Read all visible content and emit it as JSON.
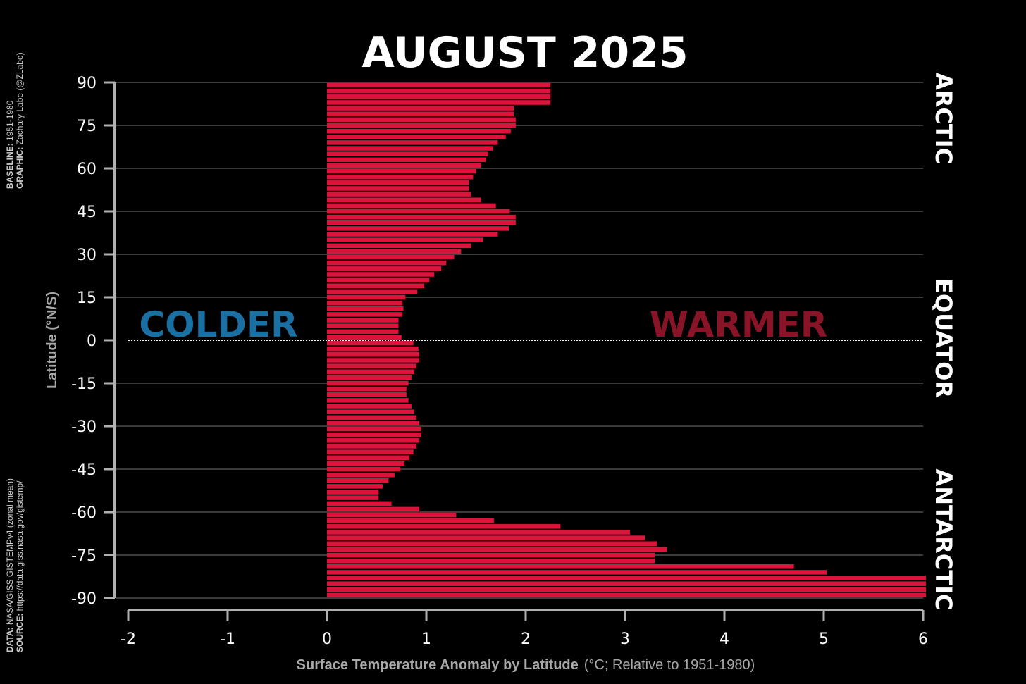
{
  "chart_data": {
    "type": "bar",
    "orientation": "horizontal",
    "title": "AUGUST 2025",
    "ylabel": "Latitude (°N/S)",
    "xlabel_bold": "Surface Temperature Anomaly by Latitude",
    "xlabel_rest": "(°C; Relative to 1951-1980)",
    "xlim": [
      -2,
      6
    ],
    "ylim": [
      -90,
      90
    ],
    "x_ticks": [
      "-2",
      "-1",
      "0",
      "1",
      "2",
      "3",
      "4",
      "5",
      "6"
    ],
    "y_ticks": [
      "90",
      "75",
      "60",
      "45",
      "30",
      "15",
      "0",
      "-15",
      "-30",
      "-45",
      "-60",
      "-75",
      "-90"
    ],
    "region_labels": [
      "ARCTIC",
      "EQUATOR",
      "ANTARCTIC"
    ],
    "annotations": {
      "colder": "COLDER",
      "warmer": "WARMER"
    },
    "bar_width_deg": 2,
    "latitudes": [
      89,
      87,
      85,
      83,
      81,
      79,
      77,
      75,
      73,
      71,
      69,
      67,
      65,
      63,
      61,
      59,
      57,
      55,
      53,
      51,
      49,
      47,
      45,
      43,
      41,
      39,
      37,
      35,
      33,
      31,
      29,
      27,
      25,
      23,
      21,
      19,
      17,
      15,
      13,
      11,
      9,
      7,
      5,
      3,
      1,
      -1,
      -3,
      -5,
      -7,
      -9,
      -11,
      -13,
      -15,
      -17,
      -19,
      -21,
      -23,
      -25,
      -27,
      -29,
      -31,
      -33,
      -35,
      -37,
      -39,
      -41,
      -43,
      -45,
      -47,
      -49,
      -51,
      -53,
      -55,
      -57,
      -59,
      -61,
      -63,
      -65,
      -67,
      -69,
      -71,
      -73,
      -75,
      -77,
      -79,
      -81,
      -83,
      -85,
      -87,
      -89
    ],
    "values": [
      2.25,
      2.25,
      2.25,
      2.25,
      1.88,
      1.88,
      1.9,
      1.9,
      1.85,
      1.8,
      1.72,
      1.67,
      1.62,
      1.6,
      1.55,
      1.5,
      1.47,
      1.43,
      1.43,
      1.45,
      1.55,
      1.7,
      1.84,
      1.9,
      1.9,
      1.83,
      1.72,
      1.57,
      1.45,
      1.35,
      1.28,
      1.2,
      1.15,
      1.08,
      1.03,
      0.98,
      0.91,
      0.79,
      0.76,
      0.77,
      0.76,
      0.72,
      0.72,
      0.72,
      0.75,
      0.87,
      0.92,
      0.93,
      0.93,
      0.9,
      0.88,
      0.85,
      0.82,
      0.8,
      0.8,
      0.82,
      0.85,
      0.88,
      0.9,
      0.93,
      0.95,
      0.95,
      0.93,
      0.9,
      0.87,
      0.83,
      0.78,
      0.74,
      0.68,
      0.62,
      0.56,
      0.52,
      0.52,
      0.65,
      0.93,
      1.3,
      1.68,
      2.35,
      3.05,
      3.2,
      3.32,
      3.42,
      3.3,
      3.3,
      4.7,
      5.03,
      6.05,
      6.05,
      6.05,
      6.05
    ],
    "colors": {
      "bar": "#dc143c",
      "colder": "#1a6fa3",
      "warmer": "#8a1427",
      "grid": "#3a3a3a",
      "axis": "#b0b0b0"
    }
  },
  "side_notes": {
    "top": {
      "k1": "BASELINE:",
      "v1": "1951-1980",
      "k2": "GRAPHIC:",
      "v2": "Zachary Labe (@ZLabe)"
    },
    "bottom": {
      "k1": "DATA:",
      "v1": "NASA/GISS GISTEMPv4 (zonal mean)",
      "k2": "SOURCE:",
      "v2": "https://data.giss.nasa.gov/gistemp/"
    }
  }
}
